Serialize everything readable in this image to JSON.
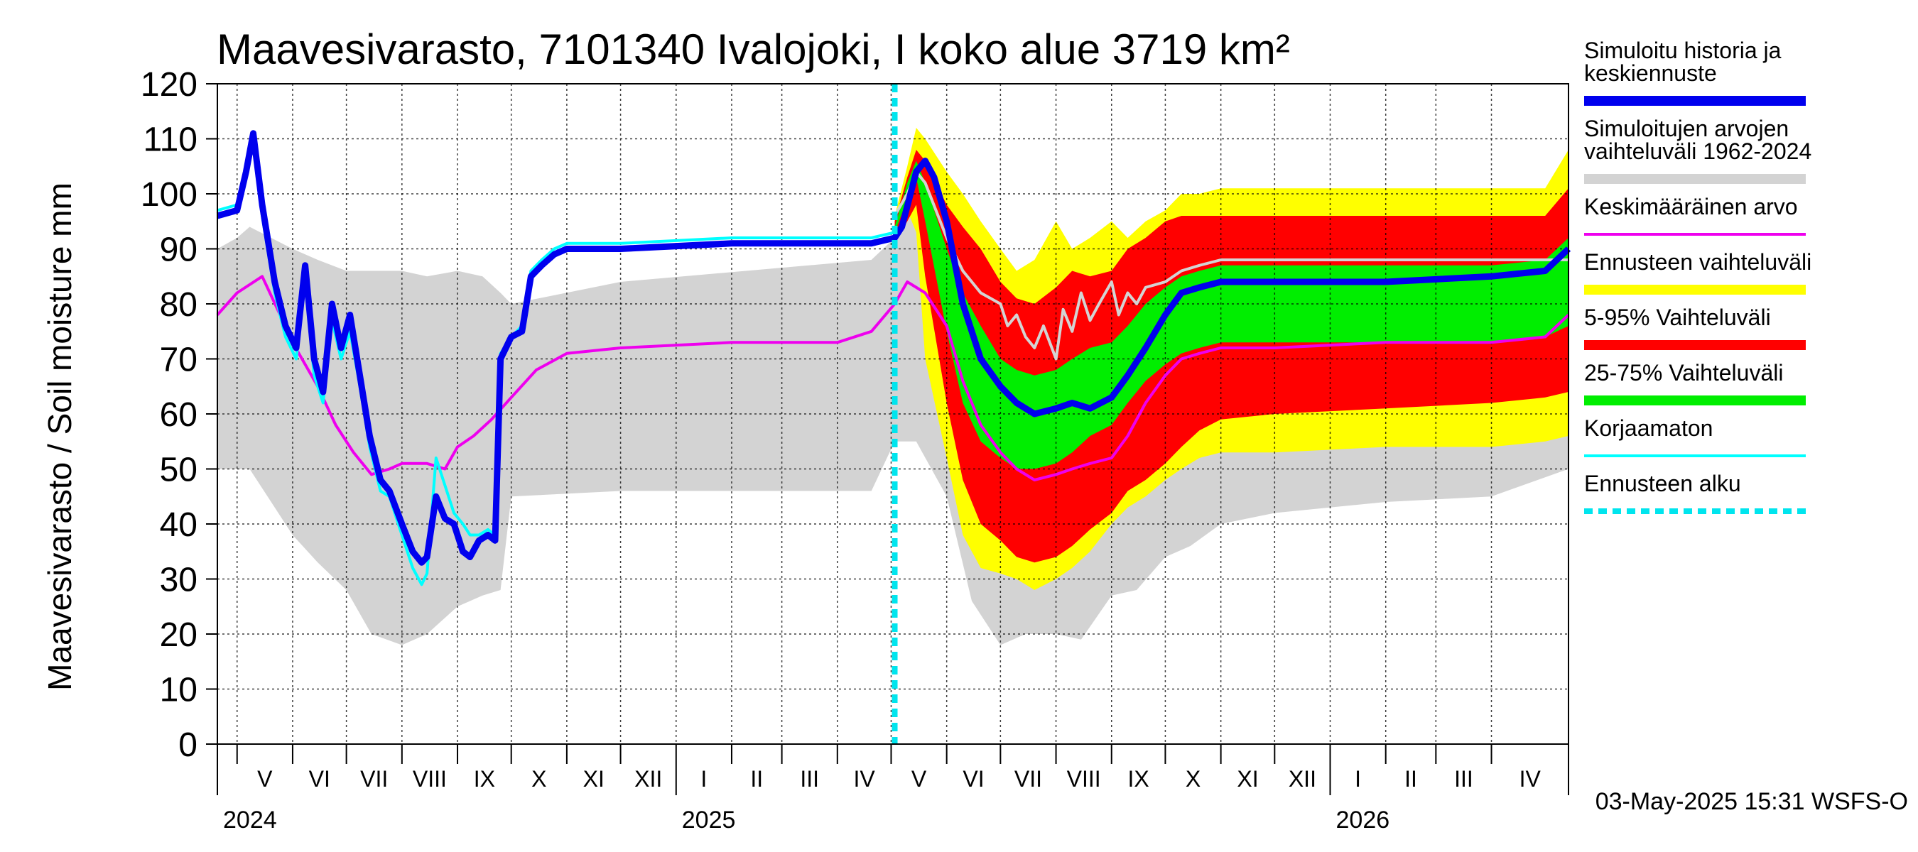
{
  "chart_data": {
    "type": "area",
    "title": "Maavesivarasto, 7101340 Ivalojoki, I koko alue 3719 km²",
    "ylabel": "Maavesivarasto / Soil moisture   mm",
    "ylim": [
      0,
      120
    ],
    "yticks": [
      0,
      10,
      20,
      30,
      40,
      50,
      60,
      70,
      80,
      90,
      100,
      110,
      120
    ],
    "xlim": [
      "2024-04-20",
      "2026-05-14"
    ],
    "grid": true,
    "months": [
      {
        "label": "V",
        "start": "2024-05-01"
      },
      {
        "label": "VI",
        "start": "2024-06-01"
      },
      {
        "label": "VII",
        "start": "2024-07-01"
      },
      {
        "label": "VIII",
        "start": "2024-08-01"
      },
      {
        "label": "IX",
        "start": "2024-09-01"
      },
      {
        "label": "X",
        "start": "2024-10-01"
      },
      {
        "label": "XI",
        "start": "2024-11-01"
      },
      {
        "label": "XII",
        "start": "2024-12-01"
      },
      {
        "label": "I",
        "start": "2025-01-01"
      },
      {
        "label": "II",
        "start": "2025-02-01"
      },
      {
        "label": "III",
        "start": "2025-03-01"
      },
      {
        "label": "IV",
        "start": "2025-04-01"
      },
      {
        "label": "V",
        "start": "2025-05-01"
      },
      {
        "label": "VI",
        "start": "2025-06-01"
      },
      {
        "label": "VII",
        "start": "2025-07-01"
      },
      {
        "label": "VIII",
        "start": "2025-08-01"
      },
      {
        "label": "IX",
        "start": "2025-09-01"
      },
      {
        "label": "X",
        "start": "2025-10-01"
      },
      {
        "label": "XI",
        "start": "2025-11-01"
      },
      {
        "label": "XII",
        "start": "2025-12-01"
      },
      {
        "label": "I",
        "start": "2026-01-01"
      },
      {
        "label": "II",
        "start": "2026-02-01"
      },
      {
        "label": "III",
        "start": "2026-03-01"
      },
      {
        "label": "IV",
        "start": "2026-04-01"
      }
    ],
    "years": [
      {
        "label": "2024",
        "date": "2024-04-20"
      },
      {
        "label": "2025",
        "date": "2025-01-01"
      },
      {
        "label": "2026",
        "date": "2026-01-01"
      }
    ],
    "forecast_start": "2025-05-03",
    "timestamp": "03-May-2025 15:31 WSFS-O",
    "legend": [
      {
        "label": "Simuloitu historia ja\nkeskiennuste",
        "color": "#0000ee",
        "style": "thick"
      },
      {
        "label": "Simuloitujen arvojen\nvaihteluväli 1962-2024",
        "color": "#d3d3d3",
        "style": "thick"
      },
      {
        "label": "Keskimääräinen arvo",
        "color": "#ee00ee",
        "style": "thin"
      },
      {
        "label": "Ennusteen vaihteluväli",
        "color": "#ffff00",
        "style": "thick"
      },
      {
        "label": "5-95% Vaihteluväli",
        "color": "#ff0000",
        "style": "thick"
      },
      {
        "label": "25-75% Vaihteluväli",
        "color": "#00ee00",
        "style": "thick"
      },
      {
        "label": "Korjaamaton",
        "color": "#00ffff",
        "style": "thin"
      },
      {
        "label": "Ennusteen alku",
        "color": "#00e5ee",
        "style": "dashed"
      }
    ],
    "series": [
      {
        "name": "Simuloitujen arvojen vaihteluväli 1962-2024",
        "kind": "band",
        "color": "#d3d3d3",
        "dates": [
          "2024-04-20",
          "2024-05-01",
          "2024-05-08",
          "2024-05-20",
          "2024-06-01",
          "2024-06-15",
          "2024-07-01",
          "2024-07-15",
          "2024-08-01",
          "2024-08-15",
          "2024-09-01",
          "2024-09-15",
          "2024-09-25",
          "2024-10-01",
          "2024-12-01",
          "2025-04-20",
          "2025-05-03",
          "2025-05-15",
          "2025-06-01",
          "2025-06-15",
          "2025-07-01",
          "2025-07-15",
          "2025-08-01",
          "2025-08-15",
          "2025-09-01",
          "2025-09-15",
          "2025-10-01",
          "2025-10-15",
          "2025-11-01",
          "2025-12-01",
          "2026-02-01",
          "2026-04-01",
          "2026-05-14"
        ],
        "low": [
          50,
          50,
          50,
          44,
          38,
          33,
          28,
          20,
          18,
          20,
          25,
          27,
          28,
          45,
          46,
          46,
          55,
          55,
          45,
          26,
          18,
          20,
          20,
          19,
          27,
          28,
          34,
          36,
          40,
          42,
          44,
          45,
          50
        ],
        "high": [
          90,
          92,
          94,
          92,
          90,
          88,
          86,
          86,
          86,
          85,
          86,
          85,
          82,
          80,
          84,
          88,
          92,
          100,
          94,
          86,
          76,
          70,
          70,
          70,
          78,
          82,
          87,
          88,
          89,
          89,
          89,
          89,
          89
        ]
      },
      {
        "name": "Ennusteen vaihteluväli",
        "kind": "band",
        "color": "#ffff00",
        "dates": [
          "2025-05-03",
          "2025-05-10",
          "2025-05-15",
          "2025-05-20",
          "2025-06-01",
          "2025-06-10",
          "2025-06-20",
          "2025-07-01",
          "2025-07-10",
          "2025-07-20",
          "2025-08-01",
          "2025-08-10",
          "2025-08-20",
          "2025-09-01",
          "2025-09-10",
          "2025-09-20",
          "2025-10-01",
          "2025-10-10",
          "2025-10-20",
          "2025-11-01",
          "2025-12-01",
          "2026-02-01",
          "2026-04-01",
          "2026-05-01",
          "2026-05-14"
        ],
        "low": [
          92,
          97,
          93,
          70,
          52,
          38,
          32,
          31,
          30,
          28,
          30,
          32,
          35,
          40,
          43,
          45,
          48,
          50,
          52,
          53,
          53,
          54,
          54,
          55,
          56
        ],
        "high": [
          96,
          105,
          112,
          110,
          104,
          100,
          95,
          90,
          86,
          88,
          95,
          90,
          92,
          95,
          92,
          95,
          97,
          100,
          100,
          101,
          101,
          101,
          101,
          101,
          108
        ]
      },
      {
        "name": "5-95% Vaihteluväli",
        "kind": "band",
        "color": "#ff0000",
        "dates": [
          "2025-05-03",
          "2025-05-10",
          "2025-05-15",
          "2025-05-20",
          "2025-06-01",
          "2025-06-10",
          "2025-06-20",
          "2025-07-01",
          "2025-07-10",
          "2025-07-20",
          "2025-08-01",
          "2025-08-10",
          "2025-08-20",
          "2025-09-01",
          "2025-09-10",
          "2025-09-20",
          "2025-10-01",
          "2025-10-10",
          "2025-10-20",
          "2025-11-01",
          "2025-12-01",
          "2026-02-01",
          "2026-04-01",
          "2026-05-01",
          "2026-05-14"
        ],
        "low": [
          91,
          95,
          98,
          85,
          62,
          48,
          40,
          37,
          34,
          33,
          34,
          36,
          39,
          42,
          46,
          48,
          51,
          54,
          57,
          59,
          60,
          61,
          62,
          63,
          64
        ],
        "high": [
          95,
          103,
          108,
          106,
          98,
          94,
          90,
          84,
          81,
          80,
          83,
          86,
          85,
          86,
          90,
          92,
          95,
          96,
          96,
          96,
          96,
          96,
          96,
          96,
          101
        ]
      },
      {
        "name": "25-75% Vaihteluväli",
        "kind": "band",
        "color": "#00ee00",
        "dates": [
          "2025-05-03",
          "2025-05-10",
          "2025-05-15",
          "2025-05-20",
          "2025-06-01",
          "2025-06-10",
          "2025-06-20",
          "2025-07-01",
          "2025-07-10",
          "2025-07-20",
          "2025-08-01",
          "2025-08-10",
          "2025-08-20",
          "2025-09-01",
          "2025-09-10",
          "2025-09-20",
          "2025-10-01",
          "2025-10-10",
          "2025-10-20",
          "2025-11-01",
          "2025-12-01",
          "2026-02-01",
          "2026-04-01",
          "2026-05-01",
          "2026-05-14"
        ],
        "low": [
          93,
          99,
          103,
          95,
          75,
          62,
          55,
          52,
          50,
          50,
          51,
          53,
          56,
          58,
          62,
          66,
          69,
          71,
          72,
          73,
          73,
          73,
          73,
          74,
          76
        ],
        "high": [
          94,
          102,
          106,
          102,
          90,
          82,
          76,
          70,
          68,
          67,
          68,
          70,
          72,
          73,
          76,
          80,
          83,
          85,
          86,
          87,
          87,
          87,
          87,
          88,
          92
        ]
      },
      {
        "name": "Simuloitu historia ja keskiennuste",
        "kind": "line",
        "color": "#0000ee",
        "width": 9,
        "dates": [
          "2024-04-20",
          "2024-05-01",
          "2024-05-06",
          "2024-05-10",
          "2024-05-15",
          "2024-05-22",
          "2024-05-28",
          "2024-06-03",
          "2024-06-08",
          "2024-06-13",
          "2024-06-18",
          "2024-06-23",
          "2024-06-28",
          "2024-07-03",
          "2024-07-08",
          "2024-07-14",
          "2024-07-20",
          "2024-07-25",
          "2024-08-01",
          "2024-08-07",
          "2024-08-12",
          "2024-08-15",
          "2024-08-20",
          "2024-08-25",
          "2024-08-30",
          "2024-09-04",
          "2024-09-08",
          "2024-09-13",
          "2024-09-18",
          "2024-09-22",
          "2024-09-25",
          "2024-10-01",
          "2024-10-07",
          "2024-10-12",
          "2024-10-18",
          "2024-10-25",
          "2024-11-01",
          "2024-11-15",
          "2024-12-01",
          "2025-02-01",
          "2025-04-20",
          "2025-05-03",
          "2025-05-07",
          "2025-05-11",
          "2025-05-15",
          "2025-05-20",
          "2025-05-25",
          "2025-06-01",
          "2025-06-10",
          "2025-06-20",
          "2025-07-01",
          "2025-07-10",
          "2025-07-20",
          "2025-08-01",
          "2025-08-10",
          "2025-08-20",
          "2025-09-01",
          "2025-09-10",
          "2025-09-20",
          "2025-10-01",
          "2025-10-10",
          "2025-10-20",
          "2025-11-01",
          "2025-12-01",
          "2026-02-01",
          "2026-04-01",
          "2026-05-01",
          "2026-05-14"
        ],
        "values": [
          96,
          97,
          104,
          111,
          98,
          84,
          76,
          72,
          87,
          70,
          64,
          80,
          72,
          78,
          68,
          56,
          48,
          46,
          40,
          35,
          33,
          34,
          45,
          41,
          40,
          35,
          34,
          37,
          38,
          37,
          70,
          74,
          75,
          85,
          87,
          89,
          90,
          90,
          90,
          91,
          91,
          92,
          94,
          99,
          104,
          106,
          103,
          95,
          80,
          70,
          65,
          62,
          60,
          61,
          62,
          61,
          63,
          67,
          72,
          78,
          82,
          83,
          84,
          84,
          84,
          85,
          86,
          90
        ]
      },
      {
        "name": "Korjaamaton",
        "kind": "line",
        "color": "#00ffff",
        "width": 4,
        "dates": [
          "2024-04-20",
          "2024-05-01",
          "2024-05-06",
          "2024-05-10",
          "2024-05-15",
          "2024-05-22",
          "2024-05-28",
          "2024-06-03",
          "2024-06-08",
          "2024-06-13",
          "2024-06-18",
          "2024-06-23",
          "2024-06-28",
          "2024-07-03",
          "2024-07-08",
          "2024-07-14",
          "2024-07-20",
          "2024-07-25",
          "2024-08-01",
          "2024-08-07",
          "2024-08-12",
          "2024-08-15",
          "2024-08-20",
          "2024-08-25",
          "2024-08-30",
          "2024-09-04",
          "2024-09-08",
          "2024-09-13",
          "2024-09-18",
          "2024-09-22",
          "2024-09-25",
          "2024-10-01",
          "2024-10-07",
          "2024-10-12",
          "2024-10-18",
          "2024-10-25",
          "2024-11-01",
          "2024-11-15",
          "2024-12-01",
          "2025-02-01",
          "2025-04-20",
          "2025-05-03"
        ],
        "values": [
          97,
          98,
          103,
          110,
          96,
          82,
          74,
          70,
          84,
          67,
          62,
          77,
          70,
          75,
          66,
          54,
          46,
          45,
          38,
          32,
          29,
          31,
          52,
          47,
          42,
          40,
          38,
          38,
          39,
          38,
          71,
          74,
          76,
          86,
          88,
          90,
          91,
          91,
          91,
          92,
          92,
          93
        ]
      },
      {
        "name": "Keskimääräinen arvo",
        "kind": "line",
        "color": "#ee00ee",
        "width": 4,
        "dates": [
          "2024-04-20",
          "2024-05-01",
          "2024-05-15",
          "2024-05-25",
          "2024-06-01",
          "2024-06-15",
          "2024-06-25",
          "2024-07-05",
          "2024-07-15",
          "2024-07-25",
          "2024-08-01",
          "2024-08-15",
          "2024-08-25",
          "2024-09-01",
          "2024-09-10",
          "2024-09-20",
          "2024-10-01",
          "2024-10-15",
          "2024-11-01",
          "2024-12-01",
          "2025-02-01",
          "2025-04-01",
          "2025-04-20",
          "2025-05-03",
          "2025-05-10",
          "2025-05-20",
          "2025-06-01",
          "2025-06-10",
          "2025-06-20",
          "2025-07-01",
          "2025-07-10",
          "2025-07-20",
          "2025-08-01",
          "2025-08-10",
          "2025-08-20",
          "2025-09-01",
          "2025-09-10",
          "2025-09-20",
          "2025-10-01",
          "2025-10-10",
          "2025-10-20",
          "2025-11-01",
          "2025-12-01",
          "2026-02-01",
          "2026-04-01",
          "2026-05-01",
          "2026-05-14"
        ],
        "values": [
          78,
          82,
          85,
          78,
          73,
          65,
          58,
          53,
          49,
          50,
          51,
          51,
          50,
          54,
          56,
          59,
          63,
          68,
          71,
          72,
          73,
          73,
          75,
          80,
          84,
          82,
          76,
          66,
          58,
          53,
          50,
          48,
          49,
          50,
          51,
          52,
          56,
          62,
          67,
          70,
          71,
          72,
          72,
          73,
          73,
          74,
          78
        ]
      },
      {
        "name": "Simuloitujen arvojen mediaani",
        "kind": "line",
        "color": "#d3d3d3",
        "width": 4,
        "dates": [
          "2025-05-03",
          "2025-05-10",
          "2025-05-15",
          "2025-05-20",
          "2025-06-01",
          "2025-06-10",
          "2025-06-20",
          "2025-07-01",
          "2025-07-05",
          "2025-07-10",
          "2025-07-15",
          "2025-07-20",
          "2025-07-25",
          "2025-08-01",
          "2025-08-05",
          "2025-08-10",
          "2025-08-15",
          "2025-08-20",
          "2025-08-25",
          "2025-09-01",
          "2025-09-05",
          "2025-09-10",
          "2025-09-15",
          "2025-09-20",
          "2025-10-01",
          "2025-10-10",
          "2025-10-20",
          "2025-11-01",
          "2025-12-01",
          "2026-02-01",
          "2026-04-01",
          "2026-05-14"
        ],
        "values": [
          96,
          100,
          104,
          102,
          92,
          86,
          82,
          80,
          76,
          78,
          74,
          72,
          76,
          70,
          79,
          75,
          82,
          77,
          80,
          84,
          78,
          82,
          80,
          83,
          84,
          86,
          87,
          88,
          88,
          88,
          88,
          88
        ]
      }
    ]
  }
}
